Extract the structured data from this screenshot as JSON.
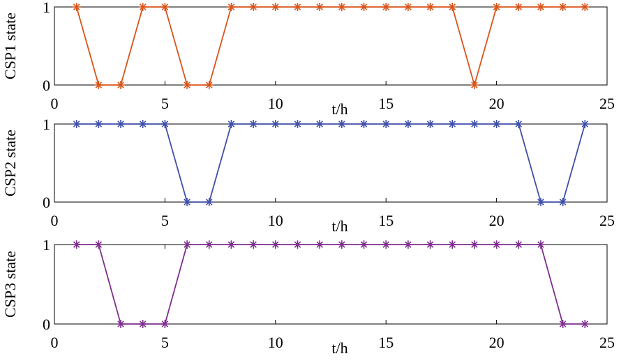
{
  "chart_data": [
    {
      "type": "line",
      "ylabel": "CSP1 state",
      "xlabel": "t/h",
      "color": "#d95319",
      "x": [
        1,
        2,
        3,
        4,
        5,
        6,
        7,
        8,
        9,
        10,
        11,
        12,
        13,
        14,
        15,
        16,
        17,
        18,
        19,
        20,
        21,
        22,
        23,
        24
      ],
      "values": [
        1,
        0,
        0,
        1,
        1,
        0,
        0,
        1,
        1,
        1,
        1,
        1,
        1,
        1,
        1,
        1,
        1,
        1,
        0,
        1,
        1,
        1,
        1,
        1
      ],
      "xlim": [
        0,
        25
      ],
      "xticks": [
        0,
        5,
        10,
        15,
        20,
        25
      ],
      "ylim": [
        0,
        1
      ],
      "yticks": [
        0,
        1
      ]
    },
    {
      "type": "line",
      "ylabel": "CSP2 state",
      "xlabel": "t/h",
      "color": "#3f4fa8",
      "x": [
        1,
        2,
        3,
        4,
        5,
        6,
        7,
        8,
        9,
        10,
        11,
        12,
        13,
        14,
        15,
        16,
        17,
        18,
        19,
        20,
        21,
        22,
        23,
        24
      ],
      "values": [
        1,
        1,
        1,
        1,
        1,
        0,
        0,
        1,
        1,
        1,
        1,
        1,
        1,
        1,
        1,
        1,
        1,
        1,
        1,
        1,
        1,
        0,
        0,
        1
      ],
      "xlim": [
        0,
        25
      ],
      "xticks": [
        0,
        5,
        10,
        15,
        20,
        25
      ],
      "ylim": [
        0,
        1
      ],
      "yticks": [
        0,
        1
      ]
    },
    {
      "type": "line",
      "ylabel": "CSP3 state",
      "xlabel": "t/h",
      "color": "#7e2f8e",
      "x": [
        1,
        2,
        3,
        4,
        5,
        6,
        7,
        8,
        9,
        10,
        11,
        12,
        13,
        14,
        15,
        16,
        17,
        18,
        19,
        20,
        21,
        22,
        23,
        24
      ],
      "values": [
        1,
        1,
        0,
        0,
        0,
        1,
        1,
        1,
        1,
        1,
        1,
        1,
        1,
        1,
        1,
        1,
        1,
        1,
        1,
        1,
        1,
        1,
        0,
        0
      ],
      "xlim": [
        0,
        25
      ],
      "xticks": [
        0,
        5,
        10,
        15,
        20,
        25
      ],
      "ylim": [
        0,
        1
      ],
      "yticks": [
        0,
        1
      ]
    }
  ]
}
